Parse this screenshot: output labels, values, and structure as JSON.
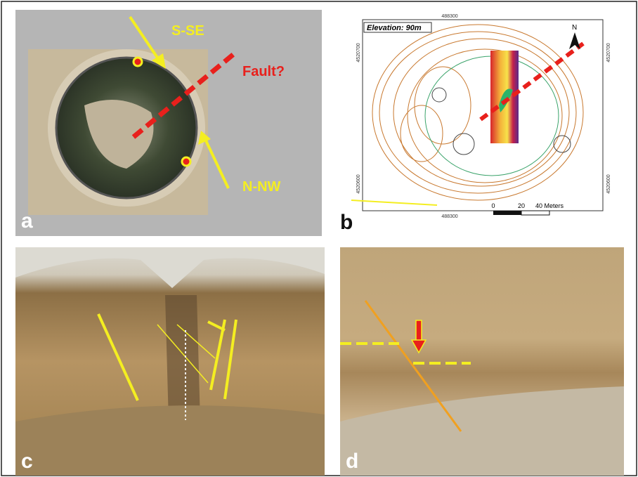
{
  "panels": [
    {
      "label": "a",
      "annotations": [
        "S-SE",
        "Fault?",
        "N-NW"
      ]
    },
    {
      "label": "b",
      "elevation": "Elevation: 90m",
      "north": "N",
      "easting": [
        "488300",
        "488300"
      ],
      "northing": [
        "4520700",
        "4520600",
        "4520700",
        "4520600"
      ],
      "scale": [
        "0",
        "20",
        "40 Meters"
      ]
    },
    {
      "label": "c"
    },
    {
      "label": "d"
    }
  ]
}
